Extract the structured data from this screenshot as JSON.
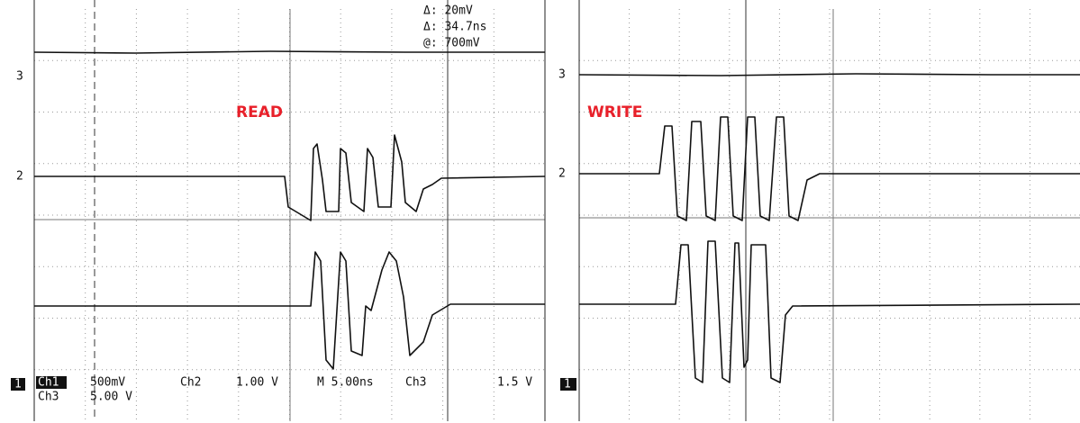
{
  "left_panel": {
    "label": "READ",
    "cursor_readout": [
      "Δ: 20mV",
      "Δ: 34.7ns",
      "@: 700mV"
    ],
    "channel_markers": [
      "3",
      "2",
      "1"
    ],
    "status": {
      "ch1": "Ch1",
      "ch1_scale": "500mV",
      "ch2": "Ch2",
      "ch2_scale": "1.00 V",
      "timebase": "M 5.00ns",
      "trigger_source": "Ch3",
      "trigger_level": "1.5 V",
      "ch3": "Ch3",
      "ch3_scale": "5.00 V"
    }
  },
  "right_panel": {
    "label": "WRITE",
    "channel_markers": [
      "3",
      "2",
      "1"
    ]
  }
}
